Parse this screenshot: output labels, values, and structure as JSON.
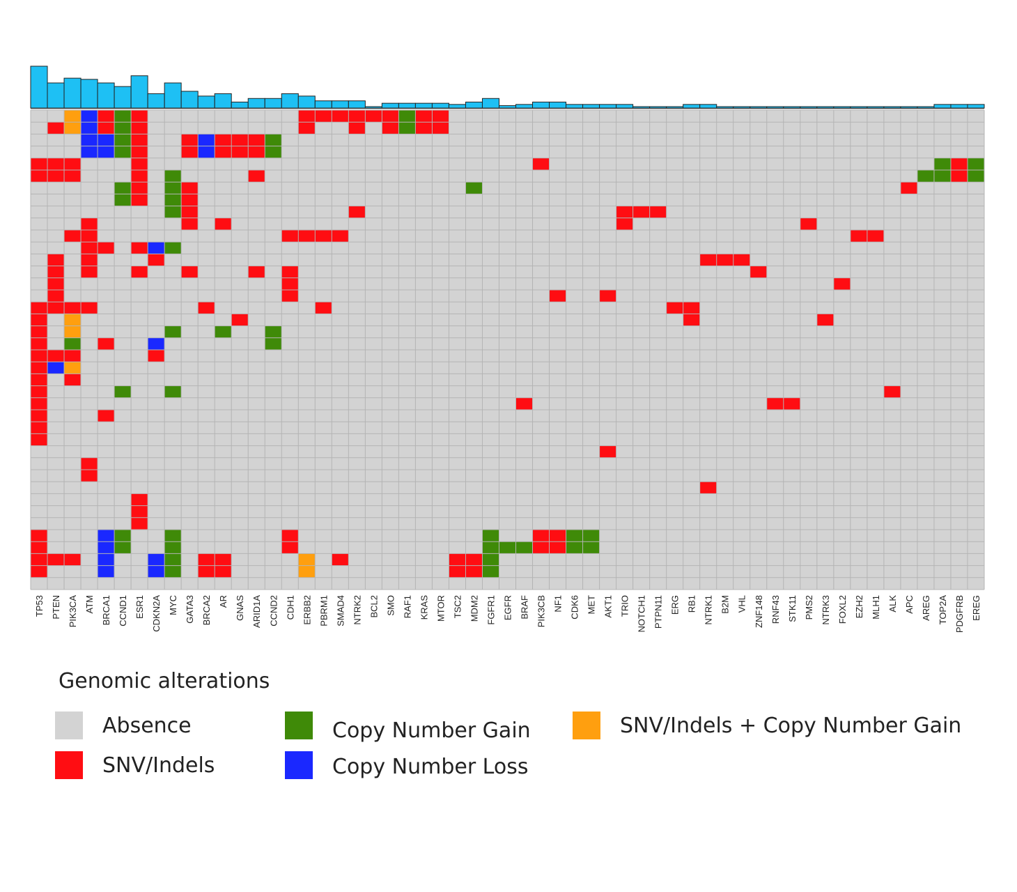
{
  "chart_data": {
    "type": "heatmap",
    "title": "",
    "genes": [
      "TP53",
      "PTEN",
      "PIK3CA",
      "ATM",
      "BRCA1",
      "CCND1",
      "ESR1",
      "CDKN2A",
      "MYC",
      "GATA3",
      "BRCA2",
      "AR",
      "GNAS",
      "ARID1A",
      "CCND2",
      "CDH1",
      "ERBB2",
      "PBRM1",
      "SMAD4",
      "NTRK2",
      "BCL2",
      "SMO",
      "RAF1",
      "KRAS",
      "MTOR",
      "TSC2",
      "MDM2",
      "FGFR1",
      "EGFR",
      "BRAF",
      "PIK3CB",
      "NF1",
      "CDK6",
      "MET",
      "AKT1",
      "TRIO",
      "NOTCH1",
      "PTPN11",
      "ERG",
      "RB1",
      "NTRK1",
      "B2M",
      "VHL",
      "ZNF148",
      "RNF43",
      "STK11",
      "PMS2",
      "NTRK3",
      "FOXL2",
      "EZH2",
      "MLH1",
      "ALK",
      "APC",
      "AREG",
      "TOP2A",
      "PDGFRB",
      "EREG"
    ],
    "sample_count": 40,
    "alteration_frequency": [
      0.35,
      0.21,
      0.25,
      0.24,
      0.21,
      0.18,
      0.27,
      0.12,
      0.21,
      0.14,
      0.1,
      0.12,
      0.05,
      0.08,
      0.08,
      0.12,
      0.1,
      0.06,
      0.06,
      0.06,
      0.01,
      0.04,
      0.04,
      0.04,
      0.04,
      0.03,
      0.05,
      0.08,
      0.02,
      0.03,
      0.05,
      0.05,
      0.03,
      0.03,
      0.03,
      0.03,
      0.01,
      0.01,
      0.01,
      0.03,
      0.03,
      0.01,
      0.01,
      0.01,
      0.01,
      0.01,
      0.01,
      0.01,
      0.01,
      0.01,
      0.01,
      0.01,
      0.01,
      0.01,
      0.03,
      0.03,
      0.03
    ],
    "alterations": [
      [
        "PIK3CA",
        0,
        "snv_gain"
      ],
      [
        "ATM",
        0,
        "loss"
      ],
      [
        "BRCA1",
        0,
        "snv"
      ],
      [
        "CCND1",
        0,
        "gain"
      ],
      [
        "ESR1",
        0,
        "snv"
      ],
      [
        "ERBB2",
        0,
        "snv"
      ],
      [
        "PBRM1",
        0,
        "snv"
      ],
      [
        "SMAD4",
        0,
        "snv"
      ],
      [
        "NTRK2",
        0,
        "snv"
      ],
      [
        "BCL2",
        0,
        "snv"
      ],
      [
        "SMO",
        0,
        "snv"
      ],
      [
        "RAF1",
        0,
        "gain"
      ],
      [
        "KRAS",
        0,
        "snv"
      ],
      [
        "MTOR",
        0,
        "snv"
      ],
      [
        "PTEN",
        1,
        "snv"
      ],
      [
        "PIK3CA",
        1,
        "snv_gain"
      ],
      [
        "ATM",
        1,
        "loss"
      ],
      [
        "BRCA1",
        1,
        "snv"
      ],
      [
        "CCND1",
        1,
        "gain"
      ],
      [
        "ESR1",
        1,
        "snv"
      ],
      [
        "ERBB2",
        1,
        "snv"
      ],
      [
        "NTRK2",
        1,
        "snv"
      ],
      [
        "SMO",
        1,
        "snv"
      ],
      [
        "RAF1",
        1,
        "gain"
      ],
      [
        "KRAS",
        1,
        "snv"
      ],
      [
        "MTOR",
        1,
        "snv"
      ],
      [
        "ATM",
        2,
        "loss"
      ],
      [
        "BRCA1",
        2,
        "loss"
      ],
      [
        "CCND1",
        2,
        "gain"
      ],
      [
        "ESR1",
        2,
        "snv"
      ],
      [
        "GATA3",
        2,
        "snv"
      ],
      [
        "BRCA2",
        2,
        "loss"
      ],
      [
        "AR",
        2,
        "snv"
      ],
      [
        "GNAS",
        2,
        "snv"
      ],
      [
        "ARID1A",
        2,
        "snv"
      ],
      [
        "CCND2",
        2,
        "gain"
      ],
      [
        "ATM",
        3,
        "loss"
      ],
      [
        "BRCA1",
        3,
        "loss"
      ],
      [
        "CCND1",
        3,
        "gain"
      ],
      [
        "ESR1",
        3,
        "snv"
      ],
      [
        "GATA3",
        3,
        "snv"
      ],
      [
        "BRCA2",
        3,
        "loss"
      ],
      [
        "AR",
        3,
        "snv"
      ],
      [
        "GNAS",
        3,
        "snv"
      ],
      [
        "ARID1A",
        3,
        "snv"
      ],
      [
        "CCND2",
        3,
        "gain"
      ],
      [
        "TP53",
        4,
        "snv"
      ],
      [
        "PTEN",
        4,
        "snv"
      ],
      [
        "PIK3CA",
        4,
        "snv"
      ],
      [
        "ESR1",
        4,
        "snv"
      ],
      [
        "PIK3CB",
        4,
        "snv"
      ],
      [
        "TOP2A",
        4,
        "gain"
      ],
      [
        "PDGFRB",
        4,
        "snv"
      ],
      [
        "EREG",
        4,
        "gain"
      ],
      [
        "TP53",
        5,
        "snv"
      ],
      [
        "PTEN",
        5,
        "snv"
      ],
      [
        "PIK3CA",
        5,
        "snv"
      ],
      [
        "ESR1",
        5,
        "snv"
      ],
      [
        "MYC",
        5,
        "gain"
      ],
      [
        "ARID1A",
        5,
        "snv"
      ],
      [
        "AREG",
        5,
        "gain"
      ],
      [
        "TOP2A",
        5,
        "gain"
      ],
      [
        "PDGFRB",
        5,
        "snv"
      ],
      [
        "EREG",
        5,
        "gain"
      ],
      [
        "CCND1",
        6,
        "gain"
      ],
      [
        "ESR1",
        6,
        "snv"
      ],
      [
        "MYC",
        6,
        "gain"
      ],
      [
        "GATA3",
        6,
        "snv"
      ],
      [
        "MDM2",
        6,
        "gain"
      ],
      [
        "APC",
        6,
        "snv"
      ],
      [
        "CCND1",
        7,
        "gain"
      ],
      [
        "ESR1",
        7,
        "snv"
      ],
      [
        "MYC",
        7,
        "gain"
      ],
      [
        "GATA3",
        7,
        "snv"
      ],
      [
        "MYC",
        8,
        "gain"
      ],
      [
        "GATA3",
        8,
        "snv"
      ],
      [
        "NTRK2",
        8,
        "snv"
      ],
      [
        "TRIO",
        8,
        "snv"
      ],
      [
        "NOTCH1",
        8,
        "snv"
      ],
      [
        "PTPN11",
        8,
        "snv"
      ],
      [
        "ATM",
        9,
        "snv"
      ],
      [
        "GATA3",
        9,
        "snv"
      ],
      [
        "AR",
        9,
        "snv"
      ],
      [
        "TRIO",
        9,
        "snv"
      ],
      [
        "PMS2",
        9,
        "snv"
      ],
      [
        "PIK3CA",
        10,
        "snv"
      ],
      [
        "ATM",
        10,
        "snv"
      ],
      [
        "CDH1",
        10,
        "snv"
      ],
      [
        "ERBB2",
        10,
        "snv"
      ],
      [
        "PBRM1",
        10,
        "snv"
      ],
      [
        "SMAD4",
        10,
        "snv"
      ],
      [
        "EZH2",
        10,
        "snv"
      ],
      [
        "MLH1",
        10,
        "snv"
      ],
      [
        "ATM",
        11,
        "snv"
      ],
      [
        "BRCA1",
        11,
        "snv"
      ],
      [
        "ESR1",
        11,
        "snv"
      ],
      [
        "CDKN2A",
        11,
        "loss"
      ],
      [
        "MYC",
        11,
        "gain"
      ],
      [
        "PTEN",
        12,
        "snv"
      ],
      [
        "ATM",
        12,
        "snv"
      ],
      [
        "CDKN2A",
        12,
        "snv"
      ],
      [
        "NTRK1",
        12,
        "snv"
      ],
      [
        "B2M",
        12,
        "snv"
      ],
      [
        "VHL",
        12,
        "snv"
      ],
      [
        "PTEN",
        13,
        "snv"
      ],
      [
        "ATM",
        13,
        "snv"
      ],
      [
        "ESR1",
        13,
        "snv"
      ],
      [
        "GATA3",
        13,
        "snv"
      ],
      [
        "ARID1A",
        13,
        "snv"
      ],
      [
        "CDH1",
        13,
        "snv"
      ],
      [
        "ZNF148",
        13,
        "snv"
      ],
      [
        "PTEN",
        14,
        "snv"
      ],
      [
        "CDH1",
        14,
        "snv"
      ],
      [
        "FOXL2",
        14,
        "snv"
      ],
      [
        "PTEN",
        15,
        "snv"
      ],
      [
        "CDH1",
        15,
        "snv"
      ],
      [
        "NF1",
        15,
        "snv"
      ],
      [
        "AKT1",
        15,
        "snv"
      ],
      [
        "TP53",
        16,
        "snv"
      ],
      [
        "PTEN",
        16,
        "snv"
      ],
      [
        "PIK3CA",
        16,
        "snv"
      ],
      [
        "ATM",
        16,
        "snv"
      ],
      [
        "BRCA2",
        16,
        "snv"
      ],
      [
        "PBRM1",
        16,
        "snv"
      ],
      [
        "ERG",
        16,
        "snv"
      ],
      [
        "RB1",
        16,
        "snv"
      ],
      [
        "TP53",
        17,
        "snv"
      ],
      [
        "PIK3CA",
        17,
        "snv_gain"
      ],
      [
        "GNAS",
        17,
        "snv"
      ],
      [
        "RB1",
        17,
        "snv"
      ],
      [
        "NTRK3",
        17,
        "snv"
      ],
      [
        "TP53",
        18,
        "snv"
      ],
      [
        "PIK3CA",
        18,
        "snv_gain"
      ],
      [
        "MYC",
        18,
        "gain"
      ],
      [
        "AR",
        18,
        "gain"
      ],
      [
        "CCND2",
        18,
        "gain"
      ],
      [
        "TP53",
        19,
        "snv"
      ],
      [
        "PIK3CA",
        19,
        "gain"
      ],
      [
        "BRCA1",
        19,
        "snv"
      ],
      [
        "CDKN2A",
        19,
        "loss"
      ],
      [
        "CCND2",
        19,
        "gain"
      ],
      [
        "TP53",
        20,
        "snv"
      ],
      [
        "PTEN",
        20,
        "snv"
      ],
      [
        "PIK3CA",
        20,
        "snv"
      ],
      [
        "CDKN2A",
        20,
        "snv"
      ],
      [
        "TP53",
        21,
        "snv"
      ],
      [
        "PTEN",
        21,
        "loss"
      ],
      [
        "PIK3CA",
        21,
        "snv_gain"
      ],
      [
        "TP53",
        22,
        "snv"
      ],
      [
        "PIK3CA",
        22,
        "snv"
      ],
      [
        "TP53",
        23,
        "snv"
      ],
      [
        "CCND1",
        23,
        "gain"
      ],
      [
        "MYC",
        23,
        "gain"
      ],
      [
        "ALK",
        23,
        "snv"
      ],
      [
        "TP53",
        24,
        "snv"
      ],
      [
        "BRAF",
        24,
        "snv"
      ],
      [
        "RNF43",
        24,
        "snv"
      ],
      [
        "STK11",
        24,
        "snv"
      ],
      [
        "TP53",
        25,
        "snv"
      ],
      [
        "BRCA1",
        25,
        "snv"
      ],
      [
        "TP53",
        26,
        "snv"
      ],
      [
        "TP53",
        27,
        "snv"
      ],
      [
        "AKT1",
        28,
        "snv"
      ],
      [
        "ATM",
        29,
        "snv"
      ],
      [
        "ATM",
        30,
        "snv"
      ],
      [
        "NTRK1",
        31,
        "snv"
      ],
      [
        "ESR1",
        32,
        "snv"
      ],
      [
        "ESR1",
        33,
        "snv"
      ],
      [
        "ESR1",
        34,
        "snv"
      ],
      [
        "TP53",
        35,
        "snv"
      ],
      [
        "BRCA1",
        35,
        "loss"
      ],
      [
        "CCND1",
        35,
        "gain"
      ],
      [
        "MYC",
        35,
        "gain"
      ],
      [
        "CDH1",
        35,
        "snv"
      ],
      [
        "FGFR1",
        35,
        "gain"
      ],
      [
        "PIK3CB",
        35,
        "snv"
      ],
      [
        "NF1",
        35,
        "snv"
      ],
      [
        "CDK6",
        35,
        "gain"
      ],
      [
        "MET",
        35,
        "gain"
      ],
      [
        "TP53",
        36,
        "snv"
      ],
      [
        "BRCA1",
        36,
        "loss"
      ],
      [
        "CCND1",
        36,
        "gain"
      ],
      [
        "MYC",
        36,
        "gain"
      ],
      [
        "CDH1",
        36,
        "snv"
      ],
      [
        "FGFR1",
        36,
        "gain"
      ],
      [
        "EGFR",
        36,
        "gain"
      ],
      [
        "BRAF",
        36,
        "gain"
      ],
      [
        "PIK3CB",
        36,
        "snv"
      ],
      [
        "NF1",
        36,
        "snv"
      ],
      [
        "CDK6",
        36,
        "gain"
      ],
      [
        "MET",
        36,
        "gain"
      ],
      [
        "TP53",
        37,
        "snv"
      ],
      [
        "PTEN",
        37,
        "snv"
      ],
      [
        "PIK3CA",
        37,
        "snv"
      ],
      [
        "BRCA1",
        37,
        "loss"
      ],
      [
        "CDKN2A",
        37,
        "loss"
      ],
      [
        "MYC",
        37,
        "gain"
      ],
      [
        "BRCA2",
        37,
        "snv"
      ],
      [
        "AR",
        37,
        "snv"
      ],
      [
        "ERBB2",
        37,
        "snv_gain"
      ],
      [
        "SMAD4",
        37,
        "snv"
      ],
      [
        "TSC2",
        37,
        "snv"
      ],
      [
        "MDM2",
        37,
        "snv"
      ],
      [
        "FGFR1",
        37,
        "gain"
      ],
      [
        "TP53",
        38,
        "snv"
      ],
      [
        "BRCA1",
        38,
        "loss"
      ],
      [
        "CDKN2A",
        38,
        "loss"
      ],
      [
        "MYC",
        38,
        "gain"
      ],
      [
        "BRCA2",
        38,
        "snv"
      ],
      [
        "AR",
        38,
        "snv"
      ],
      [
        "ERBB2",
        38,
        "snv_gain"
      ],
      [
        "TSC2",
        38,
        "snv"
      ],
      [
        "MDM2",
        38,
        "snv"
      ],
      [
        "FGFR1",
        38,
        "gain"
      ]
    ],
    "colors": {
      "absence": "#d3d3d3",
      "snv": "#ff0d12",
      "gain": "#3f8a08",
      "loss": "#1a28ff",
      "snv_gain": "#ff9f0f",
      "bar": "#1ec0f4",
      "grid": "#b4b4b4"
    }
  },
  "legend": {
    "title": "Genomic alterations",
    "items": [
      {
        "key": "absence",
        "label": "Absence"
      },
      {
        "key": "snv",
        "label": "SNV/Indels"
      },
      {
        "key": "gain",
        "label": "Copy Number Gain"
      },
      {
        "key": "loss",
        "label": "Copy Number Loss"
      },
      {
        "key": "snv_gain",
        "label": "SNV/Indels + Copy Number Gain"
      }
    ]
  }
}
